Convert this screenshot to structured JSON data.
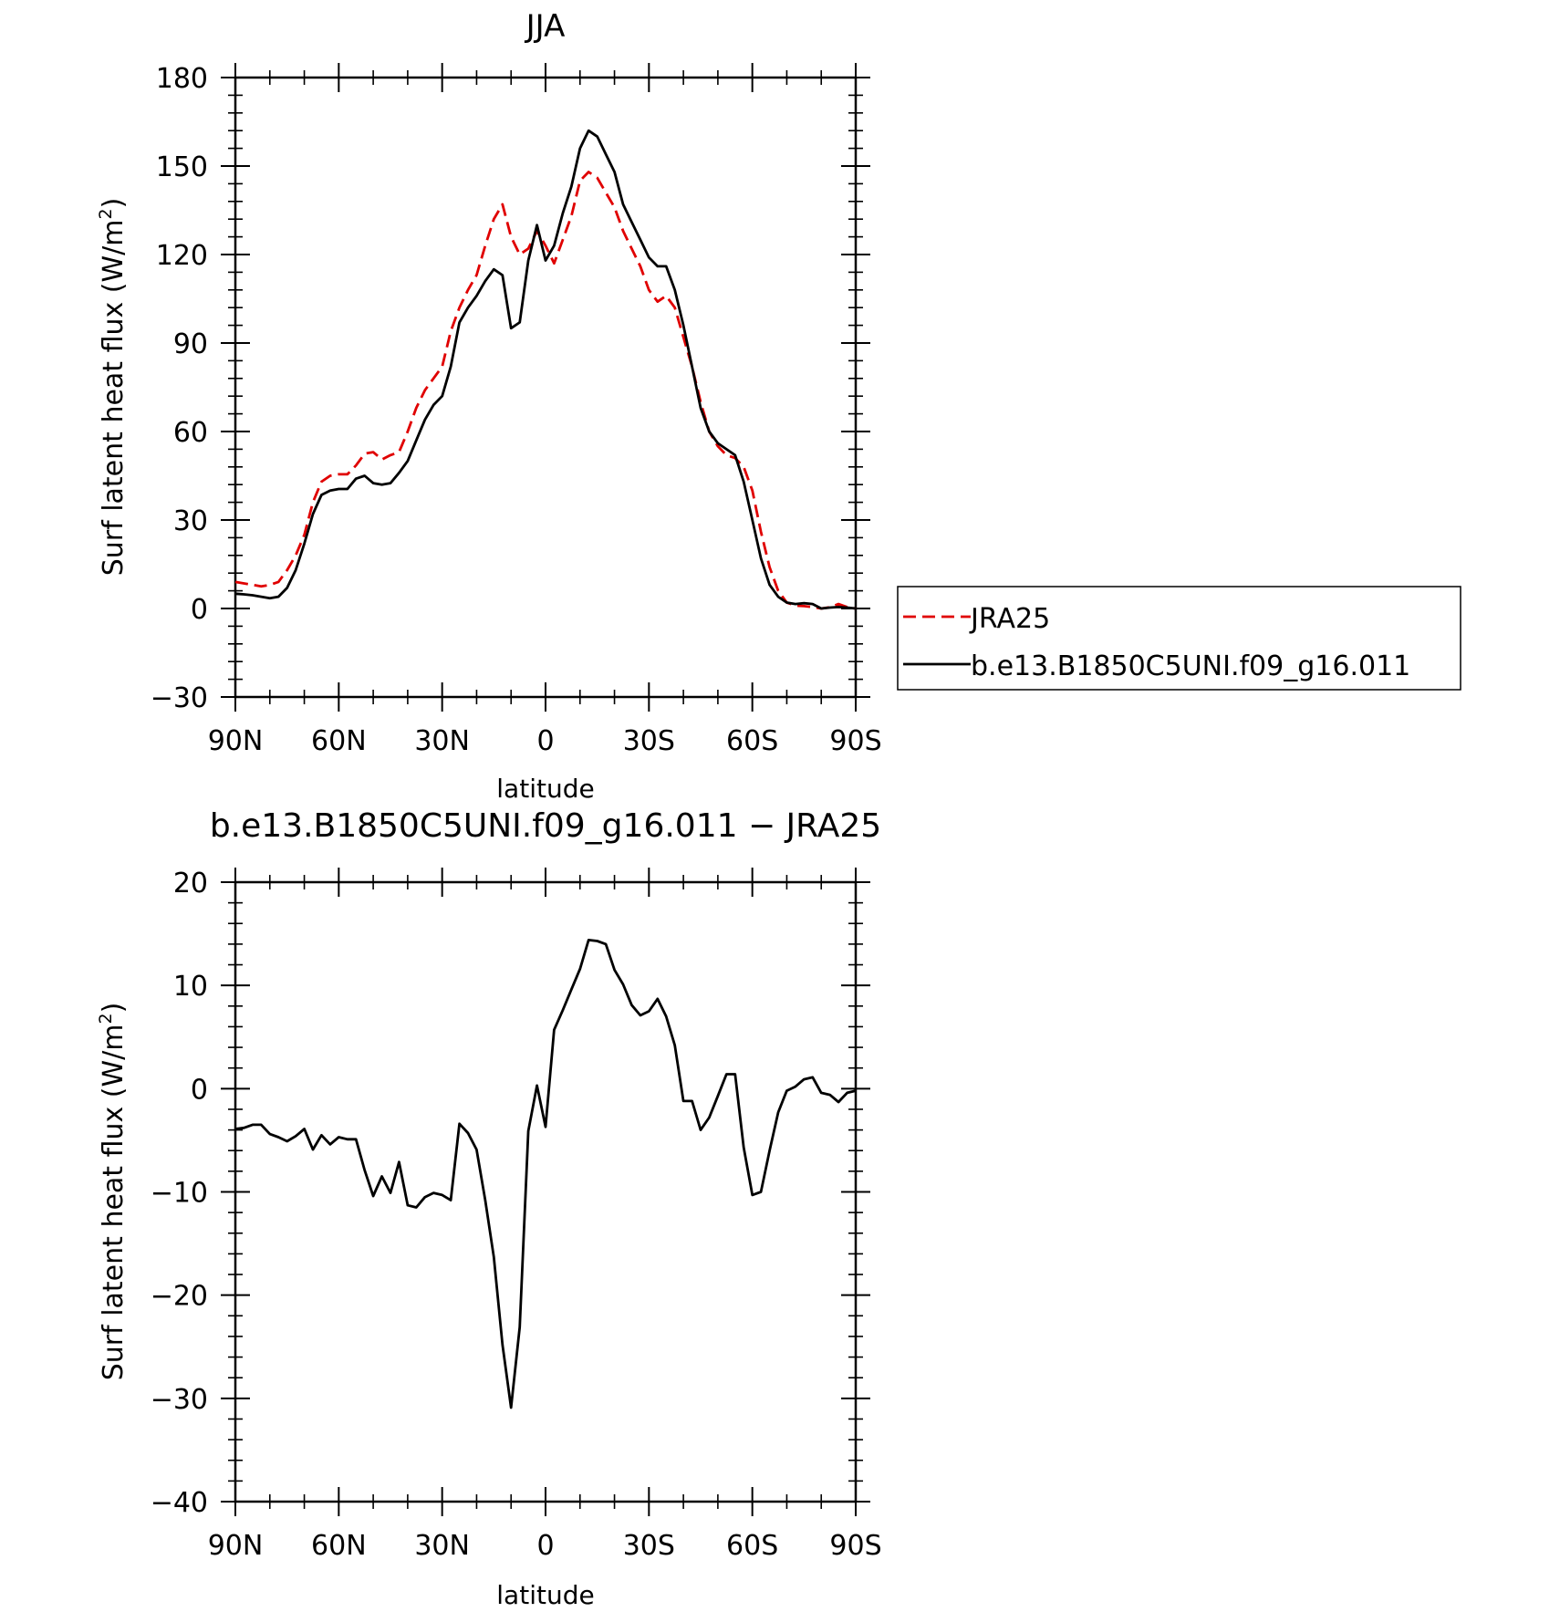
{
  "chart_data": [
    {
      "type": "line",
      "title": "JJA",
      "xlabel": "latitude",
      "ylabel": "Surf latent heat flux (W/m",
      "ylabel_sup": "2",
      "ylabel_close": ")",
      "xlim": [
        90,
        -90
      ],
      "ylim": [
        -30,
        180
      ],
      "xticks": [
        {
          "value": 90,
          "label": "90N"
        },
        {
          "value": 60,
          "label": "60N"
        },
        {
          "value": 30,
          "label": "30N"
        },
        {
          "value": 0,
          "label": "0"
        },
        {
          "value": -30,
          "label": "30S"
        },
        {
          "value": -60,
          "label": "60S"
        },
        {
          "value": -90,
          "label": "90S"
        }
      ],
      "yticks": [
        -30,
        0,
        30,
        60,
        90,
        120,
        150,
        180
      ],
      "legend_position": "right",
      "series": [
        {
          "name": "JRA25",
          "color": "#e00000",
          "dash": true,
          "x": [
            90,
            87.5,
            85,
            82.5,
            80,
            77.5,
            75,
            72.5,
            70,
            67.5,
            65,
            62.5,
            60,
            57.5,
            55,
            52.5,
            50,
            47.5,
            45,
            42.5,
            40,
            37.5,
            35,
            32.5,
            30,
            27.5,
            25,
            22.5,
            20,
            17.5,
            15,
            12.5,
            10,
            7.5,
            5,
            2.5,
            0,
            -2.5,
            -5,
            -7.5,
            -10,
            -12.5,
            -15,
            -17.5,
            -20,
            -22.5,
            -25,
            -27.5,
            -30,
            -32.5,
            -35,
            -37.5,
            -40,
            -42.5,
            -45,
            -47.5,
            -50,
            -52.5,
            -55,
            -57.5,
            -60,
            -62.5,
            -65,
            -67.5,
            -70,
            -72.5,
            -75,
            -77.5,
            -80,
            -82.5,
            -85,
            -87.5,
            -90
          ],
          "values": [
            9,
            8.5,
            8,
            7.5,
            8,
            9,
            13,
            18,
            25,
            36,
            43,
            45,
            45.5,
            45.5,
            48.5,
            52.5,
            53,
            50.5,
            52,
            53,
            60,
            68,
            74,
            78,
            82,
            94,
            102,
            108,
            113,
            123,
            132,
            137,
            126,
            120,
            122,
            128,
            123,
            117,
            125,
            133,
            145,
            148,
            146,
            141,
            136,
            128,
            122,
            116,
            108,
            104,
            106,
            102,
            92,
            82,
            70,
            60,
            55,
            52,
            51,
            48,
            40,
            26,
            14,
            6,
            2,
            1,
            0.8,
            0.5,
            0,
            0.4,
            1.5,
            0.5,
            0
          ]
        },
        {
          "name": "b.e13.B1850C5UNI.f09_g16.011",
          "color": "#000000",
          "dash": false,
          "x": [
            90,
            87.5,
            85,
            82.5,
            80,
            77.5,
            75,
            72.5,
            70,
            67.5,
            65,
            62.5,
            60,
            57.5,
            55,
            52.5,
            50,
            47.5,
            45,
            42.5,
            40,
            37.5,
            35,
            32.5,
            30,
            27.5,
            25,
            22.5,
            20,
            17.5,
            15,
            12.5,
            10,
            7.5,
            5,
            2.5,
            0,
            -2.5,
            -5,
            -7.5,
            -10,
            -12.5,
            -15,
            -17.5,
            -20,
            -22.5,
            -25,
            -27.5,
            -30,
            -32.5,
            -35,
            -37.5,
            -40,
            -42.5,
            -45,
            -47.5,
            -50,
            -52.5,
            -55,
            -57.5,
            -60,
            -62.5,
            -65,
            -67.5,
            -70,
            -72.5,
            -75,
            -77.5,
            -80,
            -82.5,
            -85,
            -87.5,
            -90
          ],
          "values": [
            5,
            4.8,
            4.5,
            4,
            3.5,
            4,
            7,
            13,
            22,
            32,
            38.5,
            40,
            40.5,
            40.5,
            44,
            45,
            42.5,
            42,
            42.5,
            46,
            50,
            57,
            64,
            69,
            72,
            82,
            97,
            102,
            106,
            111,
            115,
            113,
            95,
            97,
            118,
            130,
            118,
            123,
            134,
            143,
            156,
            162,
            160,
            154,
            148,
            137,
            131,
            125,
            119,
            116,
            116,
            108,
            96,
            82,
            68,
            60,
            56,
            54,
            52,
            43,
            30,
            17,
            8,
            4,
            2,
            1.5,
            1.8,
            1.5,
            0,
            0.3,
            0.5,
            0.3,
            0
          ]
        }
      ]
    },
    {
      "type": "line",
      "title": "b.e13.B1850C5UNI.f09_g16.011 − JRA25",
      "xlabel": "latitude",
      "ylabel": "Surf latent heat flux (W/m",
      "ylabel_sup": "2",
      "ylabel_close": ")",
      "xlim": [
        90,
        -90
      ],
      "ylim": [
        -40,
        20
      ],
      "xticks": [
        {
          "value": 90,
          "label": "90N"
        },
        {
          "value": 60,
          "label": "60N"
        },
        {
          "value": 30,
          "label": "30N"
        },
        {
          "value": 0,
          "label": "0"
        },
        {
          "value": -30,
          "label": "30S"
        },
        {
          "value": -60,
          "label": "60S"
        },
        {
          "value": -90,
          "label": "90S"
        }
      ],
      "yticks": [
        -40,
        -30,
        -20,
        -10,
        0,
        10,
        20
      ],
      "series": [
        {
          "color": "#000000",
          "dash": false,
          "x": [
            90,
            87.5,
            85,
            82.5,
            80,
            77.5,
            75,
            72.5,
            70,
            67.5,
            65,
            62.5,
            60,
            57.5,
            55,
            52.5,
            50,
            47.5,
            45,
            42.5,
            40,
            37.5,
            35,
            32.5,
            30,
            27.5,
            25,
            22.5,
            20,
            17.5,
            15,
            12.5,
            10,
            7.5,
            5,
            2.5,
            0,
            -2.5,
            -5,
            -7.5,
            -10,
            -12.5,
            -15,
            -17.5,
            -20,
            -22.5,
            -25,
            -27.5,
            -30,
            -32.5,
            -35,
            -37.5,
            -40,
            -42.5,
            -45,
            -47.5,
            -50,
            -52.5,
            -55,
            -57.5,
            -60,
            -62.5,
            -65,
            -67.5,
            -70,
            -72.5,
            -75,
            -77.5,
            -80,
            -82.5,
            -85,
            -87.5,
            -90
          ],
          "values": [
            -3.9,
            -3.8,
            -3.5,
            -3.5,
            -4.4,
            -4.7,
            -5.1,
            -4.6,
            -3.9,
            -5.9,
            -4.5,
            -5.4,
            -4.7,
            -4.9,
            -4.9,
            -7.9,
            -10.4,
            -8.5,
            -10.1,
            -7.1,
            -11.3,
            -11.5,
            -10.5,
            -10.1,
            -10.3,
            -10.8,
            -3.4,
            -4.3,
            -5.9,
            -10.8,
            -16.3,
            -24.8,
            -30.9,
            -23.1,
            -4.1,
            0.3,
            -3.7,
            5.7,
            7.6,
            9.6,
            11.6,
            14.4,
            14.3,
            14.0,
            11.5,
            10.1,
            8.1,
            7.1,
            7.5,
            8.7,
            7.0,
            4.2,
            -1.2,
            -1.2,
            -4.0,
            -2.8,
            -0.7,
            1.4,
            1.4,
            -5.7,
            -10.3,
            -10.0,
            -6.0,
            -2.3,
            -0.2,
            0.2,
            0.9,
            1.1,
            -0.4,
            -0.6,
            -1.3,
            -0.4,
            -0.2
          ]
        }
      ]
    }
  ]
}
